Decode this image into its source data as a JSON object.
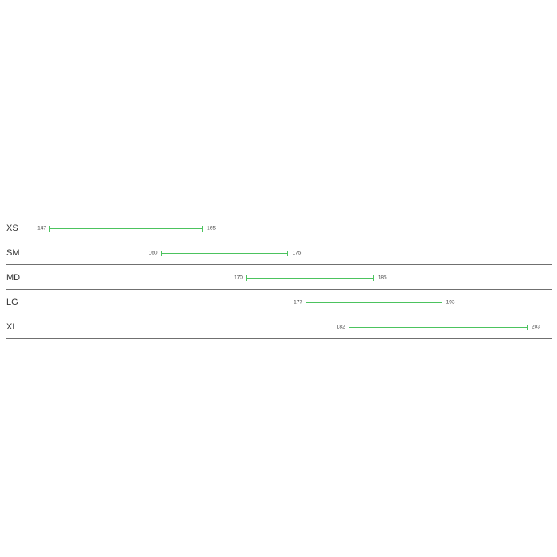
{
  "chart_data": {
    "type": "range-bar",
    "title": "",
    "xlabel": "",
    "ylabel": "",
    "xlim": [
      147,
      203
    ],
    "grid": false,
    "bar_color": "#4cc35e",
    "divider_color": "#707070",
    "categories": [
      "XS",
      "SM",
      "MD",
      "LG",
      "XL"
    ],
    "ranges": [
      {
        "category": "XS",
        "min": 147,
        "max": 165
      },
      {
        "category": "SM",
        "min": 160,
        "max": 175
      },
      {
        "category": "MD",
        "min": 170,
        "max": 185
      },
      {
        "category": "LG",
        "min": 177,
        "max": 193
      },
      {
        "category": "XL",
        "min": 182,
        "max": 203
      }
    ]
  }
}
